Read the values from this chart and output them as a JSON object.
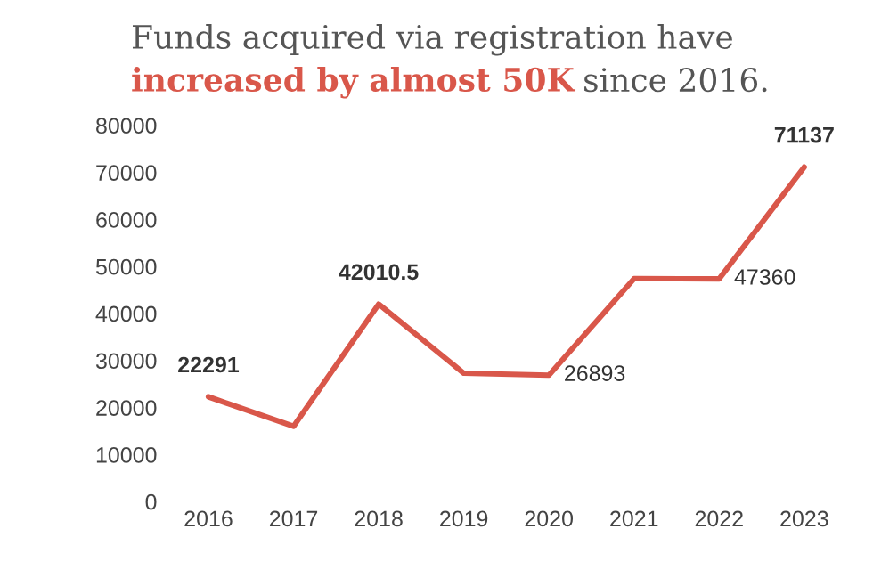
{
  "chart_data": {
    "type": "line",
    "title": "Funds acquired via registration have",
    "subtitle": "increased by almost 50K",
    "annotations": [
      "since 2016."
    ],
    "categories": [
      "2016",
      "2017",
      "2018",
      "2019",
      "2020",
      "2021",
      "2022",
      "2023"
    ],
    "series": [
      {
        "color": "#d9574a",
        "values": [
          22291,
          16000,
          42010.5,
          27300,
          26893,
          47400,
          47360,
          71137
        ],
        "value_labels": [
          "22291",
          null,
          "42010.5",
          null,
          "26893",
          null,
          "47360",
          "71137"
        ]
      }
    ],
    "ylim": [
      0,
      80000
    ],
    "yticks": [
      0,
      10000,
      20000,
      30000,
      40000,
      50000,
      60000,
      70000,
      80000
    ],
    "grid": false,
    "legend": false,
    "marker": "none",
    "line_style": "solid"
  }
}
